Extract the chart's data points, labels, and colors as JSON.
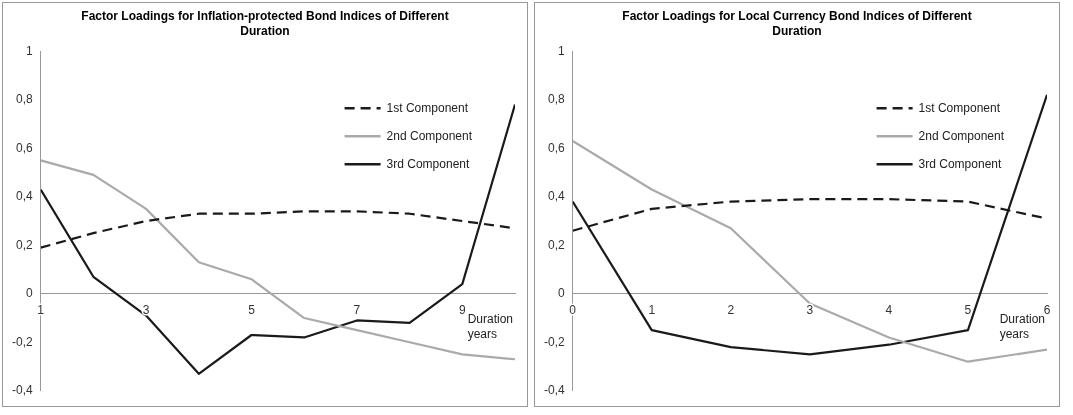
{
  "chart_data": [
    {
      "type": "line",
      "title": "Factor Loadings for Inflation-protected Bond Indices of Different Duration",
      "xlabel": "Duration years",
      "x": [
        1,
        2,
        3,
        4,
        5,
        6,
        7,
        8,
        9,
        10
      ],
      "xlim": [
        1,
        10
      ],
      "xticks": [
        1,
        3,
        5,
        7,
        9
      ],
      "ylim": [
        -0.4,
        1
      ],
      "yticks": [
        {
          "value": -0.4,
          "label": "-0,4"
        },
        {
          "value": -0.2,
          "label": "-0,2"
        },
        {
          "value": 0,
          "label": "0"
        },
        {
          "value": 0.2,
          "label": "0,2"
        },
        {
          "value": 0.4,
          "label": "0,4"
        },
        {
          "value": 0.6,
          "label": "0,6"
        },
        {
          "value": 0.8,
          "label": "0,8"
        },
        {
          "value": 1,
          "label": "1"
        }
      ],
      "grid": false,
      "legend": "top right",
      "marker": "none",
      "series": [
        {
          "name": "1st Component",
          "color": "#1a1a1a",
          "line_style": "dashed",
          "values": [
            0.19,
            0.25,
            0.3,
            0.33,
            0.33,
            0.34,
            0.34,
            0.33,
            0.3,
            0.27
          ]
        },
        {
          "name": "2nd Component",
          "color": "#aaaaaa",
          "line_style": "solid",
          "values": [
            0.55,
            0.49,
            0.35,
            0.13,
            0.06,
            -0.1,
            -0.15,
            -0.2,
            -0.25,
            -0.27
          ]
        },
        {
          "name": "3rd Component",
          "color": "#1a1a1a",
          "line_style": "solid",
          "values": [
            0.43,
            0.07,
            -0.09,
            -0.33,
            -0.17,
            -0.18,
            -0.11,
            -0.12,
            0.04,
            0.78
          ]
        }
      ]
    },
    {
      "type": "line",
      "title": "Factor Loadings for Local Currency Bond Indices of Different Duration",
      "xlabel": "Duration years",
      "x": [
        0,
        1,
        2,
        3,
        4,
        5,
        6
      ],
      "xlim": [
        0,
        6
      ],
      "xticks": [
        0,
        1,
        2,
        3,
        4,
        5,
        6
      ],
      "ylim": [
        -0.4,
        1
      ],
      "yticks": [
        {
          "value": -0.4,
          "label": "-0,4"
        },
        {
          "value": -0.2,
          "label": "-0,2"
        },
        {
          "value": 0,
          "label": "0"
        },
        {
          "value": 0.2,
          "label": "0,2"
        },
        {
          "value": 0.4,
          "label": "0,4"
        },
        {
          "value": 0.6,
          "label": "0,6"
        },
        {
          "value": 0.8,
          "label": "0,8"
        },
        {
          "value": 1,
          "label": "1"
        }
      ],
      "grid": false,
      "legend": "top right",
      "marker": "none",
      "series": [
        {
          "name": "1st Component",
          "color": "#1a1a1a",
          "line_style": "dashed",
          "values": [
            0.26,
            0.35,
            0.38,
            0.39,
            0.39,
            0.38,
            0.31
          ]
        },
        {
          "name": "2nd Component",
          "color": "#aaaaaa",
          "line_style": "solid",
          "values": [
            0.63,
            0.43,
            0.27,
            -0.04,
            -0.18,
            -0.28,
            -0.23
          ]
        },
        {
          "name": "3rd Component",
          "color": "#1a1a1a",
          "line_style": "solid",
          "values": [
            0.38,
            -0.15,
            -0.22,
            -0.25,
            -0.21,
            -0.15,
            0.82
          ]
        }
      ]
    }
  ]
}
